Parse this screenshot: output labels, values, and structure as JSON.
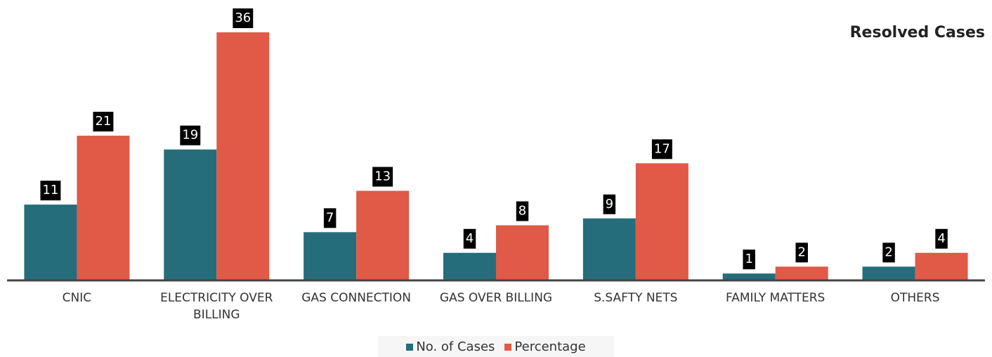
{
  "chart_data": {
    "type": "bar",
    "title": "Resolved Cases",
    "categories": [
      "CNIC",
      "ELECTRICITY OVER BILLING",
      "GAS CONNECTION",
      "GAS OVER BILLING",
      "S.SAFTY NETS",
      "FAMILY MATTERS",
      "OTHERS"
    ],
    "series": [
      {
        "name": "No. of Cases",
        "color": "#256d7b",
        "values": [
          11,
          19,
          7,
          4,
          9,
          1,
          2
        ]
      },
      {
        "name": "Percentage",
        "color": "#e05a47",
        "values": [
          21,
          36,
          13,
          8,
          17,
          2,
          4
        ]
      }
    ],
    "legend": "bottom"
  }
}
